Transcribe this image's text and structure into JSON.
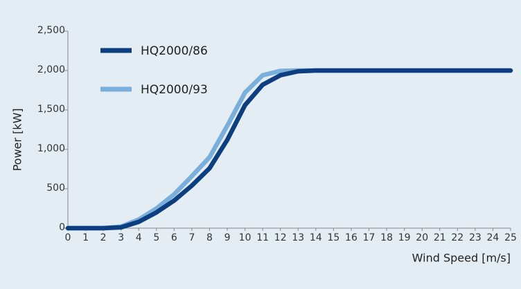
{
  "chart_data": {
    "type": "line",
    "x_label": "Wind Speed [m/s]",
    "y_label": "Power [kW]",
    "x": [
      0,
      1,
      2,
      3,
      4,
      5,
      6,
      7,
      8,
      9,
      10,
      11,
      12,
      13,
      14,
      15,
      16,
      17,
      18,
      19,
      20,
      21,
      22,
      23,
      24,
      25
    ],
    "series": [
      {
        "name": "HQ2000/86",
        "color": "#0d3e80",
        "values": [
          0,
          0,
          0,
          10,
          80,
          200,
          350,
          540,
          760,
          1120,
          1560,
          1820,
          1940,
          1990,
          2000,
          2000,
          2000,
          2000,
          2000,
          2000,
          2000,
          2000,
          2000,
          2000,
          2000,
          2000
        ]
      },
      {
        "name": "HQ2000/93",
        "color": "#7aaedb",
        "values": [
          0,
          0,
          0,
          20,
          110,
          250,
          430,
          660,
          900,
          1300,
          1720,
          1940,
          1995,
          2000,
          2000,
          2000,
          2000,
          2000,
          2000,
          2000,
          2000,
          2000,
          2000,
          2000,
          2000,
          2000
        ]
      }
    ],
    "xlim": [
      0,
      25
    ],
    "ylim": [
      0,
      2500
    ],
    "xticks": [
      0,
      1,
      2,
      3,
      4,
      5,
      6,
      7,
      8,
      9,
      10,
      11,
      12,
      13,
      14,
      15,
      16,
      17,
      18,
      19,
      20,
      21,
      22,
      23,
      24,
      25
    ],
    "yticks": [
      0,
      {
        "value": 500,
        "label": "500"
      },
      {
        "value": 1000,
        "label": "1,000"
      },
      {
        "value": 1500,
        "label": "1,500"
      },
      {
        "value": 2000,
        "label": "2,000"
      },
      {
        "value": 2500,
        "label": "2,500"
      }
    ],
    "grid": false,
    "legend": "upper left"
  }
}
